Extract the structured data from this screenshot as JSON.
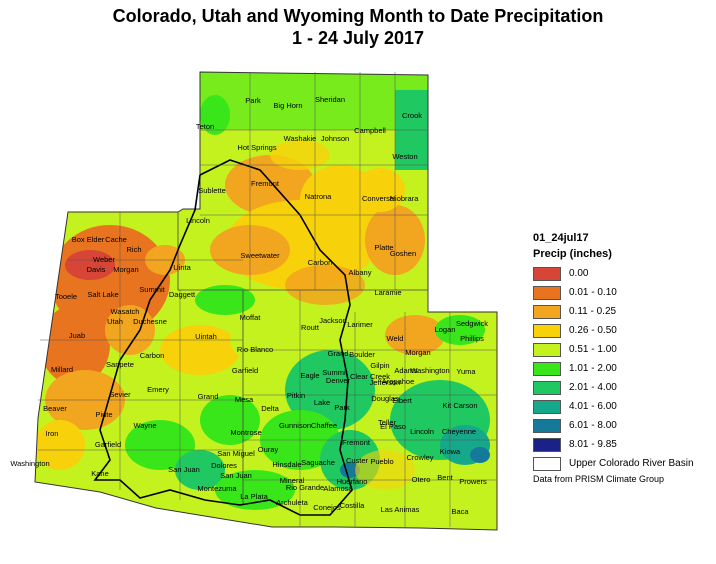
{
  "title": {
    "line1": "Colorado, Utah and Wyoming Month to Date Precipitation",
    "line2": "1 - 24 July 2017"
  },
  "legend": {
    "code": "01_24jul17",
    "title": "Precip (inches)",
    "items": [
      {
        "label": "0.00",
        "color": "#d64535"
      },
      {
        "label": "0.01 - 0.10",
        "color": "#e8741f"
      },
      {
        "label": "0.11 - 0.25",
        "color": "#f2a51f"
      },
      {
        "label": "0.26 - 0.50",
        "color": "#f7d20a"
      },
      {
        "label": "0.51 - 1.00",
        "color": "#c4f21f"
      },
      {
        "label": "1.01 - 2.00",
        "color": "#39e61a"
      },
      {
        "label": "2.01 - 4.00",
        "color": "#1fc860"
      },
      {
        "label": "4.01 - 6.00",
        "color": "#16a88a"
      },
      {
        "label": "6.01 - 8.00",
        "color": "#157a9a"
      },
      {
        "label": "8.01 - 9.85",
        "color": "#1a2288"
      },
      {
        "label": "Upper Colorado River Basin",
        "color": "#ffffff"
      }
    ]
  },
  "credit": "Data from PRISM Climate Group",
  "counties": {
    "wyoming": [
      "Park",
      "Big Horn",
      "Sheridan",
      "Crook",
      "Teton",
      "Washakie",
      "Johnson",
      "Campbell",
      "Hot Springs",
      "Weston",
      "Fremont",
      "Sublette",
      "Natrona",
      "Converse",
      "Niobrara",
      "Lincoln",
      "Sweetwater",
      "Carbon",
      "Albany",
      "Platte",
      "Goshen",
      "Uinta",
      "Laramie"
    ],
    "utah": [
      "Box Elder",
      "Cache",
      "Rich",
      "Weber",
      "Davis",
      "Morgan",
      "Summit",
      "Salt Lake",
      "Tooele",
      "Daggett",
      "Wasatch",
      "Utah",
      "Duchesne",
      "Uintah",
      "Juab",
      "Carbon",
      "Sanpete",
      "Millard",
      "Emery",
      "Sevier",
      "Beaver",
      "Grand",
      "Piute",
      "Wayne",
      "Iron",
      "Garfield",
      "San Juan",
      "Washington",
      "Kane"
    ],
    "colorado": [
      "Moffat",
      "Routt",
      "Jackson",
      "Larimer",
      "Logan",
      "Sedgwick",
      "Phillips",
      "Rio Blanco",
      "Grand",
      "Weld",
      "Morgan",
      "Boulder",
      "Gilpin",
      "Adams",
      "Washington",
      "Yuma",
      "Garfield",
      "Eagle",
      "Summit",
      "Clear Creek",
      "Jefferson",
      "Arapahoe",
      "Denver",
      "Mesa",
      "Pitkin",
      "Lake",
      "Douglas",
      "Elbert",
      "Kit Carson",
      "Delta",
      "Park",
      "Gunnison",
      "Chaffee",
      "Teller",
      "El Paso",
      "Lincoln",
      "Cheyenne",
      "Montrose",
      "Fremont",
      "Ouray",
      "San Miguel",
      "Hinsdale",
      "Saguache",
      "Custer",
      "Pueblo",
      "Crowley",
      "Kiowa",
      "Dolores",
      "San Juan",
      "Mineral",
      "Rio Grande",
      "Alamosa",
      "Huerfano",
      "Otero",
      "Bent",
      "Prowers",
      "Montezuma",
      "La Plata",
      "Archuleta",
      "Conejos",
      "Costilla",
      "Las Animas",
      "Baca"
    ]
  }
}
